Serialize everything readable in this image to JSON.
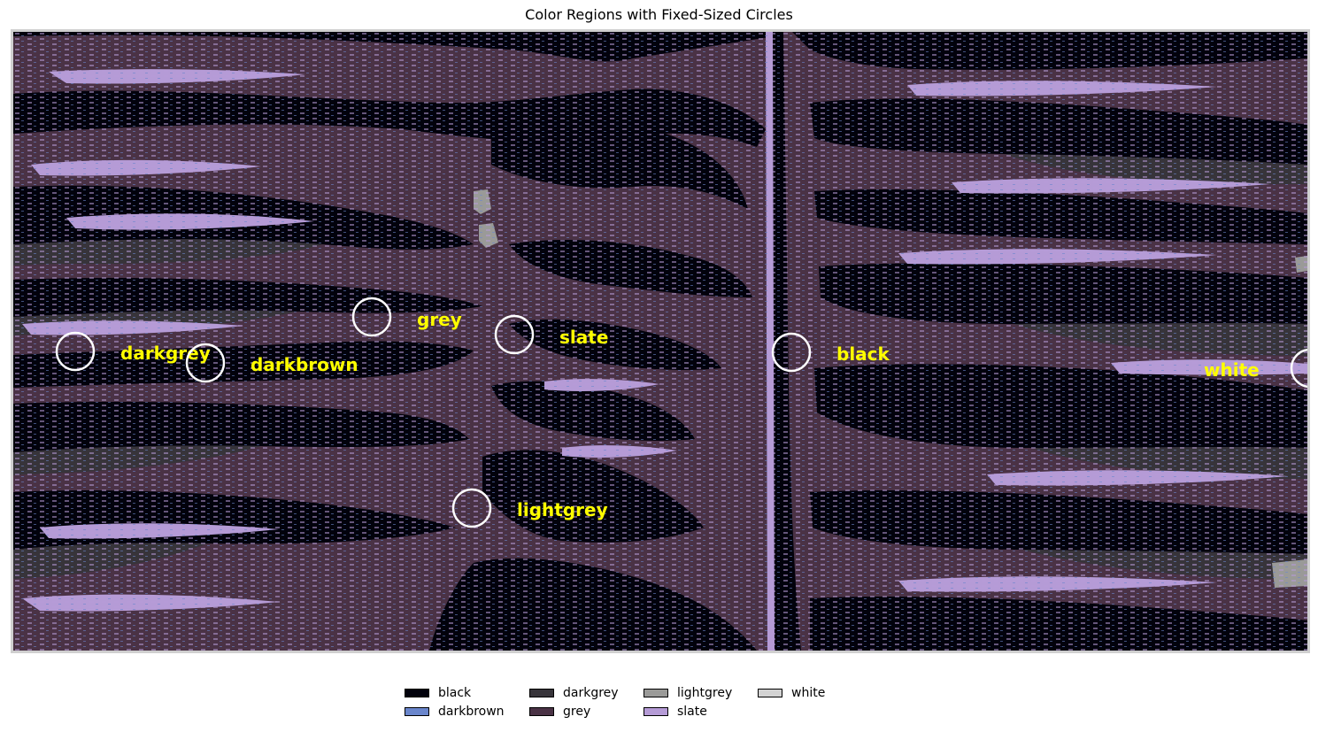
{
  "title": "Color Regions with Fixed-Sized Circles",
  "palette": {
    "black": "#02020c",
    "darkbrown": "#6a86cc",
    "darkgrey": "#37343a",
    "grey": "#4a3245",
    "lightgrey": "#9a9a98",
    "slate": "#b59bd6",
    "white": "#d2d2d2"
  },
  "marker_style": {
    "circle_color": "#ffffff",
    "label_color": "#ffff00"
  },
  "markers": [
    {
      "label": "darkgrey"
    },
    {
      "label": "darkbrown"
    },
    {
      "label": "grey"
    },
    {
      "label": "slate"
    },
    {
      "label": "black"
    },
    {
      "label": "white"
    },
    {
      "label": "lightgrey"
    }
  ],
  "legend": [
    {
      "label": "black",
      "color": "#02020c"
    },
    {
      "label": "darkbrown",
      "color": "#6a86cc"
    },
    {
      "label": "darkgrey",
      "color": "#37343a"
    },
    {
      "label": "grey",
      "color": "#4a3245"
    },
    {
      "label": "lightgrey",
      "color": "#9a9a98"
    },
    {
      "label": "slate",
      "color": "#b59bd6"
    },
    {
      "label": "white",
      "color": "#d2d2d2"
    }
  ]
}
